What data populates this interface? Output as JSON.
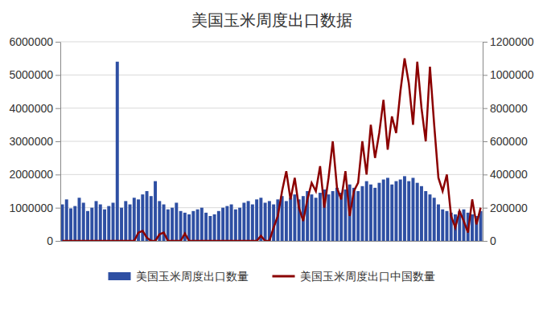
{
  "chart_data": {
    "type": "bar",
    "title": "美国玉米周度出口数据",
    "categories": [
      null,
      null,
      null,
      null,
      null,
      null,
      null,
      null,
      null,
      null,
      null,
      null,
      null,
      null,
      null,
      null,
      null,
      null,
      null,
      null,
      null,
      null,
      null,
      null,
      null,
      null,
      null,
      null,
      null,
      null,
      null,
      null,
      null,
      null,
      null,
      null,
      null,
      null,
      null,
      null,
      null,
      null,
      null,
      null,
      null,
      null,
      null,
      null,
      null,
      null,
      null,
      null,
      null,
      null,
      null,
      null,
      null,
      null,
      null,
      null,
      null,
      null,
      null,
      null,
      null,
      null,
      null,
      null,
      null,
      null,
      null,
      null,
      null,
      null,
      null,
      null,
      null,
      null,
      null,
      null,
      null,
      null,
      null,
      null,
      null,
      null,
      null,
      null,
      null,
      null,
      null,
      null,
      null,
      null,
      null,
      null,
      null,
      null,
      null,
      null
    ],
    "series": [
      {
        "name": "美国玉米周度出口数量",
        "type": "bar",
        "color": "#2e4fa3",
        "values": [
          1100000,
          1250000,
          980000,
          1050000,
          1300000,
          1150000,
          900000,
          1000000,
          1200000,
          1100000,
          950000,
          1050000,
          1150000,
          5400000,
          1000000,
          1200000,
          1100000,
          1300000,
          1250000,
          1400000,
          1500000,
          1350000,
          1800000,
          1200000,
          1100000,
          950000,
          1000000,
          1150000,
          900000,
          850000,
          800000,
          900000,
          950000,
          1000000,
          850000,
          750000,
          800000,
          900000,
          1000000,
          1050000,
          1100000,
          950000,
          1000000,
          1150000,
          1200000,
          1100000,
          1250000,
          1300000,
          1150000,
          1200000,
          1100000,
          1250000,
          1350000,
          1200000,
          1300000,
          1400000,
          1250000,
          1350000,
          1500000,
          1400000,
          1300000,
          1450000,
          1550000,
          1400000,
          1500000,
          1600000,
          1450000,
          1550000,
          1700000,
          1600000,
          1500000,
          1650000,
          1800000,
          1700000,
          1600000,
          1750000,
          1850000,
          1900000,
          1700000,
          1800000,
          1850000,
          1950000,
          1800000,
          1900000,
          1750000,
          1650000,
          1500000,
          1400000,
          1300000,
          1100000,
          950000,
          900000,
          850000,
          800000,
          900000,
          950000,
          850000,
          800000,
          750000,
          900000
        ]
      },
      {
        "name": "美国玉米周度出口中国数量",
        "type": "line",
        "axis": "y2",
        "color": "#8b0000",
        "values": [
          0,
          0,
          0,
          0,
          0,
          0,
          0,
          0,
          0,
          0,
          0,
          0,
          0,
          0,
          0,
          0,
          0,
          0,
          50000,
          60000,
          20000,
          0,
          0,
          40000,
          50000,
          0,
          0,
          0,
          0,
          45000,
          0,
          0,
          0,
          0,
          0,
          0,
          0,
          0,
          0,
          0,
          0,
          0,
          0,
          0,
          0,
          0,
          0,
          30000,
          0,
          0,
          80000,
          150000,
          300000,
          420000,
          250000,
          380000,
          200000,
          120000,
          250000,
          350000,
          300000,
          450000,
          200000,
          380000,
          600000,
          320000,
          250000,
          420000,
          150000,
          300000,
          350000,
          600000,
          400000,
          700000,
          500000,
          650000,
          850000,
          550000,
          750000,
          650000,
          900000,
          1100000,
          950000,
          700000,
          1080000,
          800000,
          600000,
          1050000,
          700000,
          380000,
          300000,
          400000,
          150000,
          80000,
          180000,
          120000,
          50000,
          250000,
          100000,
          200000
        ]
      }
    ],
    "ylim": [
      0,
      6000000
    ],
    "yticks": [
      0,
      1000000,
      2000000,
      3000000,
      4000000,
      5000000,
      6000000
    ],
    "y2lim": [
      0,
      1200000
    ],
    "y2ticks": [
      0,
      200000,
      400000,
      600000,
      800000,
      1000000,
      1200000
    ],
    "grid": true,
    "legend": "bottom"
  }
}
